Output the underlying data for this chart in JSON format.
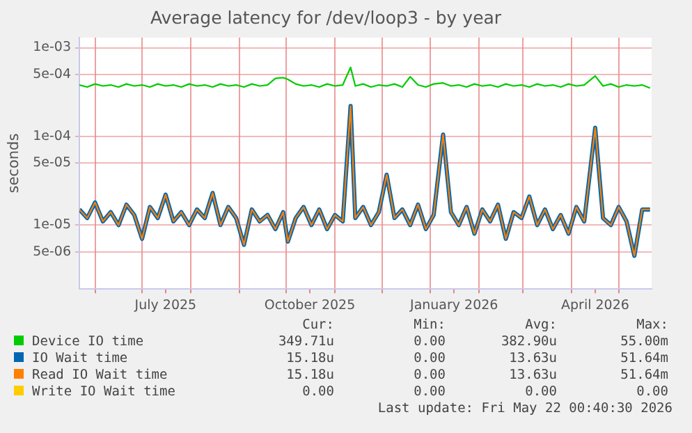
{
  "chart_data": {
    "type": "line",
    "title": "Average latency for /dev/loop3 - by year",
    "ylabel": "seconds",
    "log": true,
    "grid": true,
    "legend": "bottom",
    "marker": "none",
    "line_style": "solid",
    "x": [
      "2025-05-22",
      "2025-05-27",
      "2025-06-01",
      "2025-06-06",
      "2025-06-11",
      "2025-06-16",
      "2025-06-21",
      "2025-06-26",
      "2025-07-01",
      "2025-07-06",
      "2025-07-11",
      "2025-07-16",
      "2025-07-21",
      "2025-07-26",
      "2025-07-31",
      "2025-08-05",
      "2025-08-10",
      "2025-08-15",
      "2025-08-20",
      "2025-08-25",
      "2025-08-30",
      "2025-09-04",
      "2025-09-09",
      "2025-09-14",
      "2025-09-19",
      "2025-09-24",
      "2025-09-29",
      "2025-10-02",
      "2025-10-07",
      "2025-10-12",
      "2025-10-17",
      "2025-10-22",
      "2025-10-27",
      "2025-11-01",
      "2025-11-06",
      "2025-11-11",
      "2025-11-14",
      "2025-11-19",
      "2025-11-24",
      "2025-11-29",
      "2025-12-04",
      "2025-12-09",
      "2025-12-14",
      "2025-12-19",
      "2025-12-24",
      "2025-12-29",
      "2026-01-03",
      "2026-01-09",
      "2026-01-14",
      "2026-01-19",
      "2026-01-24",
      "2026-01-29",
      "2026-02-03",
      "2026-02-08",
      "2026-02-13",
      "2026-02-18",
      "2026-02-23",
      "2026-02-28",
      "2026-03-05",
      "2026-03-10",
      "2026-03-15",
      "2026-03-20",
      "2026-03-25",
      "2026-03-30",
      "2026-04-04",
      "2026-04-09",
      "2026-04-16",
      "2026-04-21",
      "2026-04-26",
      "2026-05-01",
      "2026-05-06",
      "2026-05-11",
      "2026-05-16",
      "2026-05-21"
    ],
    "xlim": [
      "2025-05-22",
      "2026-05-22"
    ],
    "xticks": [
      {
        "value": "2025-06-01",
        "label": null
      },
      {
        "value": "2025-07-01",
        "label": null
      },
      {
        "value": "2025-07-16",
        "label": "July 2025"
      },
      {
        "value": "2025-08-01",
        "label": null
      },
      {
        "value": "2025-09-01",
        "label": null
      },
      {
        "value": "2025-10-01",
        "label": null
      },
      {
        "value": "2025-10-16",
        "label": "October 2025"
      },
      {
        "value": "2025-11-01",
        "label": null
      },
      {
        "value": "2025-12-01",
        "label": null
      },
      {
        "value": "2026-01-01",
        "label": null
      },
      {
        "value": "2026-01-16",
        "label": "January 2026"
      },
      {
        "value": "2026-02-01",
        "label": null
      },
      {
        "value": "2026-03-01",
        "label": null
      },
      {
        "value": "2026-04-01",
        "label": null
      },
      {
        "value": "2026-04-16",
        "label": "April 2026"
      },
      {
        "value": "2026-05-01",
        "label": null
      }
    ],
    "ylim": [
      1.9e-06,
      0.0013
    ],
    "yticks": [
      {
        "value": 5e-06,
        "label": "5e-06"
      },
      {
        "value": 1e-05,
        "label": "1e-05"
      },
      {
        "value": 5e-05,
        "label": "5e-05"
      },
      {
        "value": 0.0001,
        "label": "1e-04"
      },
      {
        "value": 0.0005,
        "label": "5e-04"
      },
      {
        "value": 0.001,
        "label": "1e-03"
      }
    ],
    "series": [
      {
        "name": "Device IO time",
        "color": "#00cc00",
        "values": [
          0.00038,
          0.00036,
          0.00039,
          0.00037,
          0.00038,
          0.00036,
          0.00039,
          0.00037,
          0.00038,
          0.00036,
          0.00039,
          0.00037,
          0.00038,
          0.00036,
          0.00039,
          0.00037,
          0.00038,
          0.00036,
          0.00039,
          0.00037,
          0.00038,
          0.00036,
          0.00039,
          0.00037,
          0.00038,
          0.00045,
          0.00046,
          0.00044,
          0.00039,
          0.00037,
          0.00038,
          0.00036,
          0.00039,
          0.00037,
          0.00038,
          0.0006,
          0.00037,
          0.00039,
          0.00036,
          0.00038,
          0.00037,
          0.00039,
          0.00036,
          0.00047,
          0.00038,
          0.00036,
          0.00039,
          0.0004,
          0.00037,
          0.00038,
          0.00036,
          0.00039,
          0.00037,
          0.00038,
          0.00036,
          0.00039,
          0.00037,
          0.00038,
          0.00036,
          0.00039,
          0.00037,
          0.00038,
          0.00036,
          0.00039,
          0.00037,
          0.00038,
          0.00048,
          0.00037,
          0.00039,
          0.00036,
          0.00038,
          0.00037,
          0.00038,
          0.00035
        ]
      },
      {
        "name": "IO Wait time",
        "color": "#0066b3",
        "values": [
          1.5e-05,
          1.2e-05,
          1.8e-05,
          1.1e-05,
          1.4e-05,
          1e-05,
          1.7e-05,
          1.3e-05,
          7e-06,
          1.6e-05,
          1.2e-05,
          2.2e-05,
          1.1e-05,
          1.4e-05,
          1e-05,
          1.5e-05,
          1.2e-05,
          2.3e-05,
          1e-05,
          1.6e-05,
          1.2e-05,
          6e-06,
          1.5e-05,
          1.1e-05,
          1.3e-05,
          9e-06,
          1.4e-05,
          6.5e-06,
          1.2e-05,
          1.6e-05,
          1e-05,
          1.5e-05,
          9e-06,
          1.3e-05,
          1.1e-05,
          0.00022,
          1.2e-05,
          1.6e-05,
          1e-05,
          1.4e-05,
          3.7e-05,
          1.2e-05,
          1.5e-05,
          1e-05,
          1.7e-05,
          9e-06,
          1.3e-05,
          0.000105,
          1.4e-05,
          1e-05,
          1.6e-05,
          8e-06,
          1.5e-05,
          1.1e-05,
          1.7e-05,
          7e-06,
          1.4e-05,
          1.2e-05,
          2.1e-05,
          1e-05,
          1.5e-05,
          9e-06,
          1.3e-05,
          8e-06,
          1.6e-05,
          1.1e-05,
          0.000125,
          1.2e-05,
          1e-05,
          1.6e-05,
          1.1e-05,
          4.5e-06,
          1.5e-05,
          1.5e-05
        ]
      },
      {
        "name": "Read IO Wait time",
        "color": "#ff8000",
        "values": [
          1.5e-05,
          1.2e-05,
          1.8e-05,
          1.1e-05,
          1.4e-05,
          1e-05,
          1.7e-05,
          1.3e-05,
          7e-06,
          1.6e-05,
          1.2e-05,
          2.2e-05,
          1.1e-05,
          1.4e-05,
          1e-05,
          1.5e-05,
          1.2e-05,
          2.3e-05,
          1e-05,
          1.6e-05,
          1.2e-05,
          6e-06,
          1.5e-05,
          1.1e-05,
          1.3e-05,
          9e-06,
          1.4e-05,
          6.5e-06,
          1.2e-05,
          1.6e-05,
          1e-05,
          1.5e-05,
          9e-06,
          1.3e-05,
          1.1e-05,
          0.00022,
          1.2e-05,
          1.6e-05,
          1e-05,
          1.4e-05,
          3.7e-05,
          1.2e-05,
          1.5e-05,
          1e-05,
          1.7e-05,
          9e-06,
          1.3e-05,
          0.000105,
          1.4e-05,
          1e-05,
          1.6e-05,
          8e-06,
          1.5e-05,
          1.1e-05,
          1.7e-05,
          7e-06,
          1.4e-05,
          1.2e-05,
          2.1e-05,
          1e-05,
          1.5e-05,
          9e-06,
          1.3e-05,
          8e-06,
          1.6e-05,
          1.1e-05,
          0.000125,
          1.2e-05,
          1e-05,
          1.6e-05,
          1.1e-05,
          4.5e-06,
          1.5e-05,
          1.5e-05
        ]
      },
      {
        "name": "Write IO Wait time",
        "color": "#ffcc00",
        "values": [
          null,
          null,
          null,
          null,
          null,
          null,
          null,
          null,
          null,
          null,
          null,
          null,
          null,
          null,
          null,
          null,
          null,
          null,
          null,
          null,
          null,
          null,
          null,
          null,
          null,
          null,
          null,
          null,
          null,
          null,
          null,
          null,
          null,
          null,
          null,
          null,
          null,
          null,
          null,
          null,
          null,
          null,
          null,
          null,
          null,
          null,
          null,
          null,
          null,
          null,
          null,
          null,
          null,
          null,
          null,
          null,
          null,
          null,
          null,
          null,
          null,
          null,
          null,
          null,
          null,
          null,
          null,
          null,
          null,
          null,
          null,
          null,
          null,
          null
        ]
      }
    ],
    "annotations": [
      "Cur:",
      "Min:",
      "Avg:",
      "Max:",
      "349.71u",
      "0.00",
      "382.90u",
      "55.00m",
      "15.18u",
      "0.00",
      "13.63u",
      "51.64m",
      "15.18u",
      "0.00",
      "13.63u",
      "51.64m",
      "0.00",
      "0.00",
      "0.00",
      "0.00",
      "Last update: Fri May 22 00:40:30 2026"
    ]
  }
}
